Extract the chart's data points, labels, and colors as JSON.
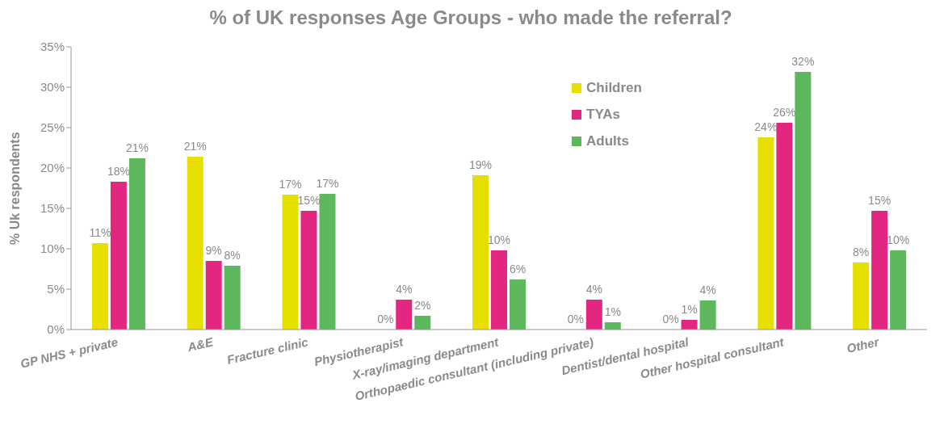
{
  "chart_data": {
    "type": "bar",
    "title": "% of UK responses Age Groups - who made the referral?",
    "ylabel": "% Uk respondents",
    "categories": [
      "GP NHS + private",
      "A&E",
      "Fracture clinic",
      "Physiotherapist",
      "X-ray/imaging department",
      "Orthopaedic consultant (including private)",
      "Dentist/dental hospital",
      "Other hospital consultant",
      "Other"
    ],
    "series": [
      {
        "name": "Children",
        "color": "#e6df00",
        "values": [
          10.7,
          21.4,
          16.7,
          0,
          19.1,
          0,
          0,
          23.8,
          8.3
        ],
        "value_labels": [
          "11%",
          "21%",
          "17%",
          "0%",
          "19%",
          "0%",
          "0%",
          "24%",
          "8%"
        ]
      },
      {
        "name": "TYAs",
        "color": "#e3267f",
        "values": [
          18.3,
          8.5,
          14.7,
          3.7,
          9.8,
          3.7,
          1.2,
          25.6,
          14.7
        ],
        "value_labels": [
          "18%",
          "9%",
          "15%",
          "4%",
          "10%",
          "4%",
          "1%",
          "26%",
          "15%"
        ]
      },
      {
        "name": "Adults",
        "color": "#5db75c",
        "values": [
          21.2,
          7.9,
          16.8,
          1.7,
          6.2,
          0.9,
          3.6,
          31.9,
          9.8
        ],
        "value_labels": [
          "21%",
          "8%",
          "17%",
          "2%",
          "6%",
          "1%",
          "4%",
          "32%",
          "10%"
        ]
      }
    ],
    "ylim": [
      0,
      35
    ],
    "yticks": [
      {
        "value": 0,
        "label": "0%"
      },
      {
        "value": 5,
        "label": "5%"
      },
      {
        "value": 10,
        "label": "10%"
      },
      {
        "value": 15,
        "label": "15%"
      },
      {
        "value": 20,
        "label": "20%"
      },
      {
        "value": 25,
        "label": "25%"
      },
      {
        "value": 30,
        "label": "30%"
      },
      {
        "value": 35,
        "label": "35%"
      }
    ],
    "legend": "top right",
    "grid": false
  }
}
